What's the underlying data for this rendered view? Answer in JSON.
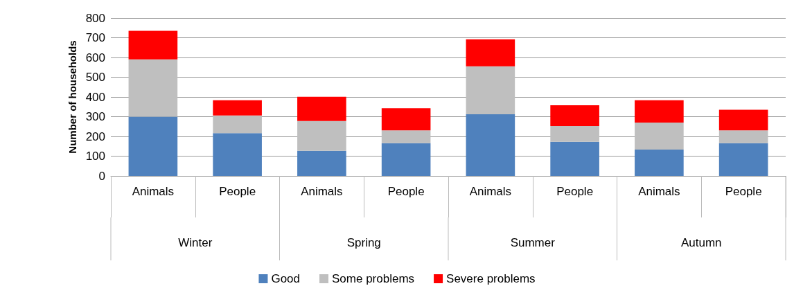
{
  "chart_data": {
    "type": "bar",
    "stacked": true,
    "ylabel": "Number of households",
    "categories": [
      "Animals",
      "People",
      "Animals",
      "People",
      "Animals",
      "People",
      "Animals",
      "People"
    ],
    "annotations": [
      "Winter",
      "Spring",
      "Summer",
      "Autumn"
    ],
    "series": [
      {
        "name": "Good",
        "color": "#4f81bd",
        "values": [
          300,
          217,
          127,
          166,
          312,
          173,
          133,
          166
        ]
      },
      {
        "name": "Some problems",
        "color": "#bfbfbf",
        "values": [
          290,
          89,
          151,
          65,
          243,
          80,
          137,
          65
        ]
      },
      {
        "name": "Severe problems",
        "color": "#ff0000",
        "values": [
          145,
          77,
          123,
          112,
          137,
          105,
          113,
          104
        ]
      }
    ],
    "ylim": [
      0,
      800
    ],
    "yticks": [
      0,
      100,
      200,
      300,
      400,
      500,
      600,
      700,
      800
    ],
    "grid": "y",
    "legend": "bottom"
  }
}
